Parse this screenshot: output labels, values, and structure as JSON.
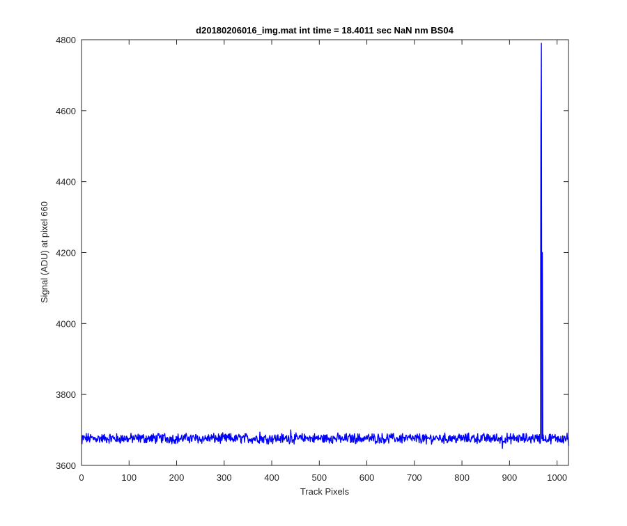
{
  "chart_data": {
    "type": "line",
    "title": "d20180206016_img.mat int time = 18.4011 sec  NaN nm BS04",
    "xlabel": "Track Pixels",
    "ylabel": "Signal (ADU) at pixel 660",
    "xlim": [
      0,
      1024
    ],
    "ylim": [
      3600,
      4800
    ],
    "xticks": [
      0,
      100,
      200,
      300,
      400,
      500,
      600,
      700,
      800,
      900,
      1000
    ],
    "yticks": [
      3600,
      3800,
      4000,
      4200,
      4400,
      4600,
      4800
    ],
    "grid": false,
    "legend": "none",
    "series": [
      {
        "color": "#0000ff",
        "baseline_mean": 3676,
        "noise_amplitude": 12,
        "x_range": [
          1,
          1024
        ],
        "spikes": [
          {
            "x": 966,
            "y": 4550
          },
          {
            "x": 967,
            "y": 4790
          },
          {
            "x": 968,
            "y": 3675
          },
          {
            "x": 969,
            "y": 4200
          },
          {
            "x": 970,
            "y": 3670
          }
        ],
        "points": [
          [
            1,
            3660
          ],
          [
            10,
            3690
          ],
          [
            25,
            3672
          ],
          [
            50,
            3680
          ],
          [
            75,
            3668
          ],
          [
            100,
            3676
          ],
          [
            125,
            3684
          ],
          [
            150,
            3670
          ],
          [
            175,
            3690
          ],
          [
            200,
            3672
          ],
          [
            225,
            3680
          ],
          [
            250,
            3668
          ],
          [
            275,
            3678
          ],
          [
            300,
            3676
          ],
          [
            325,
            3686
          ],
          [
            350,
            3674
          ],
          [
            375,
            3694
          ],
          [
            400,
            3680
          ],
          [
            425,
            3678
          ],
          [
            440,
            3700
          ],
          [
            450,
            3674
          ],
          [
            475,
            3680
          ],
          [
            500,
            3676
          ],
          [
            525,
            3682
          ],
          [
            550,
            3670
          ],
          [
            575,
            3680
          ],
          [
            600,
            3674
          ],
          [
            625,
            3682
          ],
          [
            650,
            3678
          ],
          [
            675,
            3690
          ],
          [
            700,
            3670
          ],
          [
            725,
            3660
          ],
          [
            750,
            3676
          ],
          [
            775,
            3684
          ],
          [
            800,
            3672
          ],
          [
            825,
            3686
          ],
          [
            850,
            3680
          ],
          [
            875,
            3672
          ],
          [
            885,
            3648
          ],
          [
            900,
            3674
          ],
          [
            925,
            3680
          ],
          [
            950,
            3676
          ],
          [
            960,
            3682
          ],
          [
            966,
            4550
          ],
          [
            967,
            4790
          ],
          [
            968,
            3675
          ],
          [
            969,
            4200
          ],
          [
            970,
            3670
          ],
          [
            980,
            3672
          ],
          [
            1000,
            3680
          ],
          [
            1010,
            3670
          ],
          [
            1024,
            3656
          ]
        ]
      }
    ]
  }
}
